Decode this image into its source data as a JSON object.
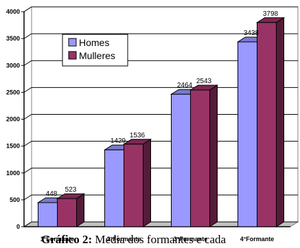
{
  "chart_data": {
    "type": "bar",
    "categories": [
      "1°Formante",
      "2°Formante",
      "3°Formante",
      "4°Formante"
    ],
    "series": [
      {
        "name": "Homes",
        "values": [
          448,
          1429,
          2464,
          3438
        ],
        "color": "#9999ff"
      },
      {
        "name": "Mulleres",
        "values": [
          523,
          1536,
          2543,
          3798
        ],
        "color": "#993366"
      }
    ],
    "ylim": [
      0,
      4000
    ],
    "yticks": [
      0,
      500,
      1000,
      1500,
      2000,
      2500,
      3000,
      3500,
      4000
    ],
    "grid": true,
    "legend_position": "top-left",
    "style": "3d-clustered-bar"
  },
  "caption": {
    "label": "Gráfico 2:",
    "text": " Media dos formantes e cada"
  }
}
